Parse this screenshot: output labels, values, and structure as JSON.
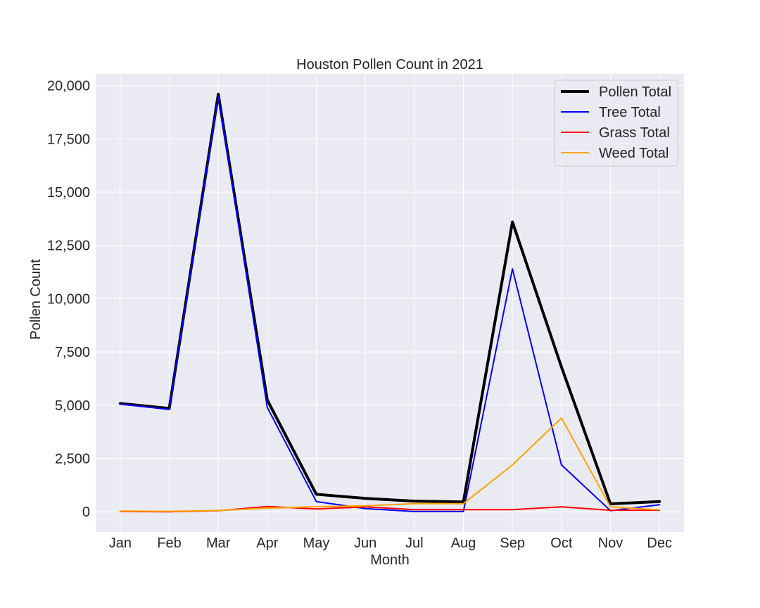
{
  "chart_data": {
    "type": "line",
    "title": "Houston Pollen Count in 2021",
    "xlabel": "Month",
    "ylabel": "Pollen Count",
    "categories": [
      "Jan",
      "Feb",
      "Mar",
      "Apr",
      "May",
      "Jun",
      "Jul",
      "Aug",
      "Sep",
      "Oct",
      "Nov",
      "Dec"
    ],
    "ylim": [
      -950,
      20550
    ],
    "yticks": [
      0,
      2500,
      5000,
      7500,
      10000,
      12500,
      15000,
      17500,
      20000
    ],
    "ytick_labels": [
      "0",
      "2,500",
      "5,000",
      "7,500",
      "10,000",
      "12,500",
      "15,000",
      "17,500",
      "20,000"
    ],
    "grid": true,
    "legend_position": "top-right",
    "series": [
      {
        "name": "Pollen Total",
        "color": "#000000",
        "values": [
          5080,
          4850,
          19600,
          5250,
          820,
          630,
          500,
          460,
          13600,
          6800,
          370,
          480
        ]
      },
      {
        "name": "Tree Total",
        "color": "#0000ff",
        "values": [
          5050,
          4800,
          19500,
          4900,
          480,
          150,
          10,
          10,
          11400,
          2200,
          50,
          330
        ]
      },
      {
        "name": "Grass Total",
        "color": "#ff0000",
        "values": [
          10,
          0,
          50,
          250,
          130,
          230,
          100,
          100,
          100,
          230,
          70,
          70
        ]
      },
      {
        "name": "Weed Total",
        "color": "#ffa500",
        "values": [
          30,
          20,
          60,
          170,
          240,
          280,
          380,
          380,
          2200,
          4400,
          230,
          90
        ]
      }
    ]
  }
}
